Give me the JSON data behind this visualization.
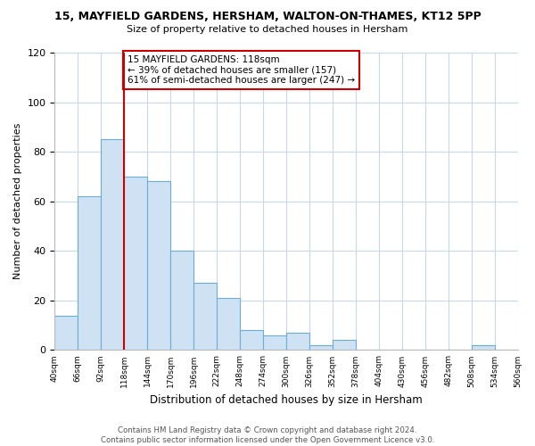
{
  "title": "15, MAYFIELD GARDENS, HERSHAM, WALTON-ON-THAMES, KT12 5PP",
  "subtitle": "Size of property relative to detached houses in Hersham",
  "xlabel": "Distribution of detached houses by size in Hersham",
  "ylabel": "Number of detached properties",
  "bar_values": [
    14,
    62,
    85,
    70,
    68,
    40,
    27,
    21,
    8,
    6,
    7,
    2,
    4,
    0,
    0,
    0,
    0,
    0,
    2,
    0
  ],
  "bin_labels": [
    "40sqm",
    "66sqm",
    "92sqm",
    "118sqm",
    "144sqm",
    "170sqm",
    "196sqm",
    "222sqm",
    "248sqm",
    "274sqm",
    "300sqm",
    "326sqm",
    "352sqm",
    "378sqm",
    "404sqm",
    "430sqm",
    "456sqm",
    "482sqm",
    "508sqm",
    "534sqm",
    "560sqm"
  ],
  "bar_color": "#cfe2f3",
  "bar_edge_color": "#6aaed6",
  "property_line_x": 2.5,
  "property_line_color": "#cc0000",
  "annotation_line1": "15 MAYFIELD GARDENS: 118sqm",
  "annotation_line2": "← 39% of detached houses are smaller (157)",
  "annotation_line3": "61% of semi-detached houses are larger (247) →",
  "ylim": [
    0,
    120
  ],
  "yticks": [
    0,
    20,
    40,
    60,
    80,
    100,
    120
  ],
  "footer_text": "Contains HM Land Registry data © Crown copyright and database right 2024.\nContains public sector information licensed under the Open Government Licence v3.0.",
  "background_color": "#ffffff",
  "grid_color": "#c8d8e8"
}
